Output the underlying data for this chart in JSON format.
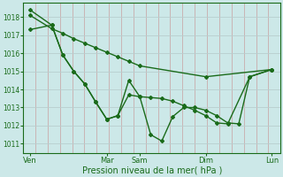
{
  "background_color": "#cce8e8",
  "plot_bg_color": "#cce8e8",
  "line_color": "#1a6b1a",
  "ylim": [
    1010.5,
    1018.8
  ],
  "yticks": [
    1011,
    1012,
    1013,
    1014,
    1015,
    1016,
    1017,
    1018
  ],
  "xlabel": "Pression niveau de la mer( hPa )",
  "xtick_labels": [
    "Ven",
    "Mar",
    "Sam",
    "Dim",
    "Lun"
  ],
  "xtick_positions": [
    0,
    35,
    50,
    80,
    110
  ],
  "xlim": [
    -3,
    114
  ],
  "line1_x": [
    0,
    10,
    15,
    20,
    25,
    30,
    35,
    40,
    45,
    50,
    80,
    110
  ],
  "line1_y": [
    1018.1,
    1017.35,
    1017.1,
    1016.8,
    1016.55,
    1016.3,
    1016.05,
    1015.8,
    1015.55,
    1015.3,
    1014.7,
    1015.1
  ],
  "line2_x": [
    0,
    10,
    15,
    20,
    25,
    30,
    35,
    40,
    45,
    50,
    55,
    60,
    65,
    70,
    75,
    80,
    85,
    90,
    100,
    110
  ],
  "line2_y": [
    1017.3,
    1017.55,
    1015.9,
    1015.0,
    1014.3,
    1013.3,
    1012.35,
    1012.55,
    1014.5,
    1013.6,
    1013.55,
    1013.5,
    1013.35,
    1013.1,
    1012.85,
    1012.55,
    1012.15,
    1012.1,
    1014.7,
    1015.1
  ],
  "line3_x": [
    0,
    10,
    15,
    20,
    25,
    30,
    35,
    40,
    45,
    50,
    55,
    60,
    65,
    70,
    75,
    80,
    85,
    90,
    95,
    100,
    110
  ],
  "line3_y": [
    1018.4,
    1017.55,
    1015.9,
    1015.0,
    1014.3,
    1013.3,
    1012.35,
    1012.55,
    1013.7,
    1013.6,
    1011.5,
    1011.15,
    1012.5,
    1013.0,
    1013.0,
    1012.85,
    1012.55,
    1012.15,
    1012.1,
    1014.7,
    1015.1
  ],
  "marker_size": 2.0,
  "linewidth": 1.0,
  "vgrid_color": "#c8a0a0",
  "hgrid_color": "#b8cece"
}
